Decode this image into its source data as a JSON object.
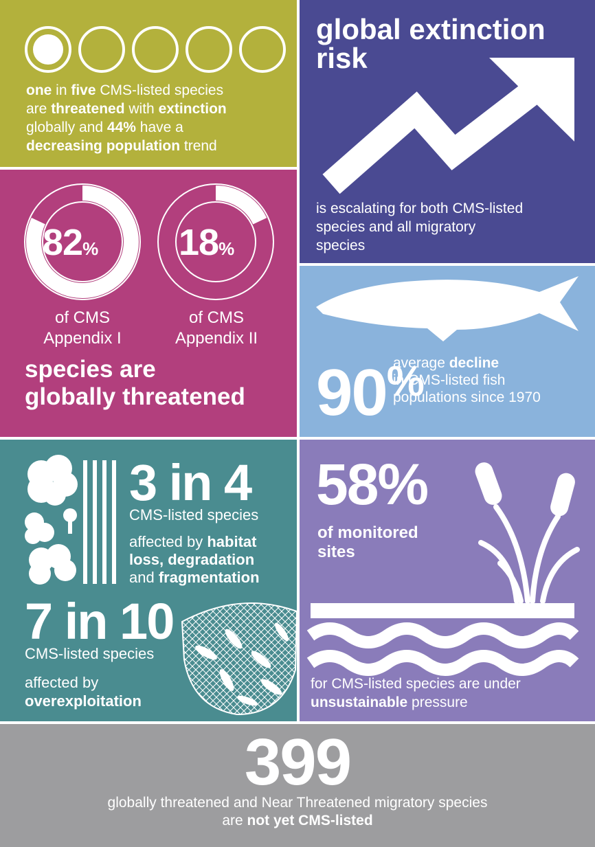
{
  "risk_summary": {
    "lines": [
      [
        {
          "text": "one",
          "bold": true
        },
        {
          "text": " in "
        },
        {
          "text": "five",
          "bold": true
        },
        {
          "text": " CMS-listed species"
        }
      ],
      [
        {
          "text": "are "
        },
        {
          "text": "threatened",
          "bold": true
        },
        {
          "text": " with "
        },
        {
          "text": "extinction",
          "bold": true
        }
      ],
      [
        {
          "text": "globally and "
        },
        {
          "text": "44%",
          "bold": true
        },
        {
          "text": " have a"
        }
      ],
      [
        {
          "text": "decreasing population",
          "bold": true
        },
        {
          "text": " trend"
        }
      ]
    ]
  },
  "extinction_risk": {
    "title_lines": [
      [
        {
          "text": "global extinction",
          "bold": true
        }
      ],
      [
        {
          "text": "risk",
          "bold": true
        }
      ]
    ],
    "lines": [
      [
        {
          "text": "is escalating for both CMS-listed"
        }
      ],
      [
        {
          "text": "species and all migratory"
        }
      ],
      [
        {
          "text": "species"
        }
      ]
    ]
  },
  "appendix": {
    "rings": [
      {
        "value": 82,
        "unit": "%",
        "label_lines": [
          [
            {
              "text": "of CMS"
            }
          ],
          [
            {
              "text": "Appendix I"
            }
          ]
        ]
      },
      {
        "value": 18,
        "unit": "%",
        "label_lines": [
          [
            {
              "text": "of CMS"
            }
          ],
          [
            {
              "text": "Appendix II"
            }
          ]
        ]
      }
    ],
    "statement_lines": [
      [
        {
          "text": "species are",
          "bold": true
        }
      ],
      [
        {
          "text": "globally threatened",
          "bold": true
        }
      ]
    ]
  },
  "fish": {
    "stat": "90",
    "unit": "%",
    "lines": [
      [
        {
          "text": "average "
        },
        {
          "text": "decline",
          "bold": true
        }
      ],
      [
        {
          "text": "in CMS-listed fish"
        }
      ],
      [
        {
          "text": "populations since 1970"
        }
      ]
    ]
  },
  "habitat": {
    "stat": "3 in 4",
    "subtitle": "CMS-listed species",
    "lines": [
      [
        {
          "text": "affected by "
        },
        {
          "text": "habitat",
          "bold": true
        }
      ],
      [
        {
          "text": "loss, degradation",
          "bold": true
        }
      ],
      [
        {
          "text": "and "
        },
        {
          "text": "fragmentation",
          "bold": true
        }
      ]
    ]
  },
  "exploitation": {
    "stat": "7 in 10",
    "subtitle": "CMS-listed species",
    "lines": [
      [
        {
          "text": "affected by"
        }
      ],
      [
        {
          "text": "overexploitation",
          "bold": true
        }
      ]
    ]
  },
  "sites": {
    "stat": "58%",
    "lines": [
      [
        {
          "text": "of monitored",
          "bold": true
        }
      ],
      [
        {
          "text": "sites",
          "bold": true
        }
      ]
    ],
    "footer_lines": [
      [
        {
          "text": "for CMS-listed species are under"
        }
      ],
      [
        {
          "text": "unsustainable",
          "bold": true
        },
        {
          "text": " pressure"
        }
      ]
    ]
  },
  "not_listed": {
    "stat": "399",
    "lines": [
      [
        {
          "text": "globally threatened and Near Threatened migratory species"
        }
      ],
      [
        {
          "text": "are "
        },
        {
          "text": "not yet CMS-listed",
          "bold": true
        }
      ]
    ]
  }
}
